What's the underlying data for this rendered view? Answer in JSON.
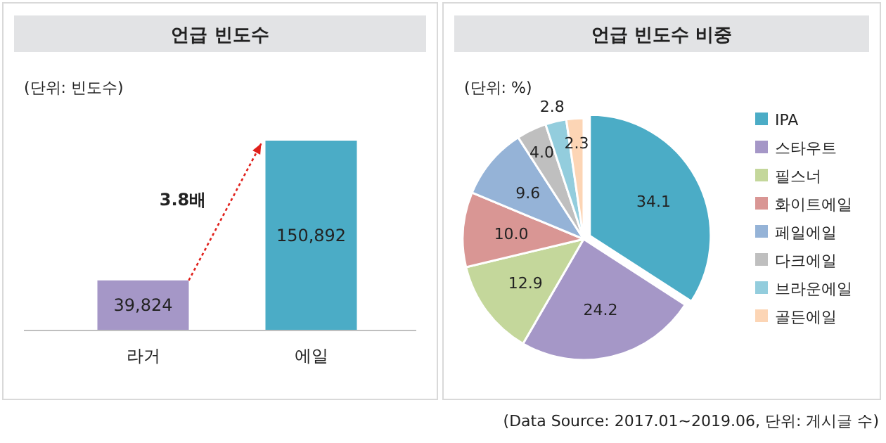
{
  "chart_data": [
    {
      "type": "bar",
      "title": "언급 빈도수",
      "subtitle": "(단위: 빈도수)",
      "categories": [
        "라거",
        "에일"
      ],
      "values": [
        39824,
        150892
      ],
      "colors": [
        "#a597c7",
        "#4bacc6"
      ],
      "value_labels": [
        "39,824",
        "150,892"
      ],
      "annotations": [
        "3.8배"
      ]
    },
    {
      "type": "pie",
      "title": "언급 빈도수 비중",
      "subtitle": "(단위: %)",
      "categories": [
        "IPA",
        "스타우트",
        "필스너",
        "화이트에일",
        "페일에일",
        "다크에일",
        "브라운에일",
        "골든에일"
      ],
      "values": [
        34.1,
        24.2,
        12.9,
        10.0,
        9.6,
        4.0,
        2.8,
        2.3
      ],
      "colors": [
        "#4bacc6",
        "#a597c7",
        "#c4d79b",
        "#d99694",
        "#95b3d7",
        "#bfbfbf",
        "#93cddd",
        "#fcd5b5"
      ],
      "value_labels": [
        "34.1",
        "24.2",
        "12.9",
        "10.0",
        "9.6",
        "4.0",
        "2.8",
        "2.3"
      ],
      "legend": "right",
      "annotations": [
        "(Data Source: 2017.01~2019.06, 단위: 게시글 수)"
      ]
    }
  ]
}
